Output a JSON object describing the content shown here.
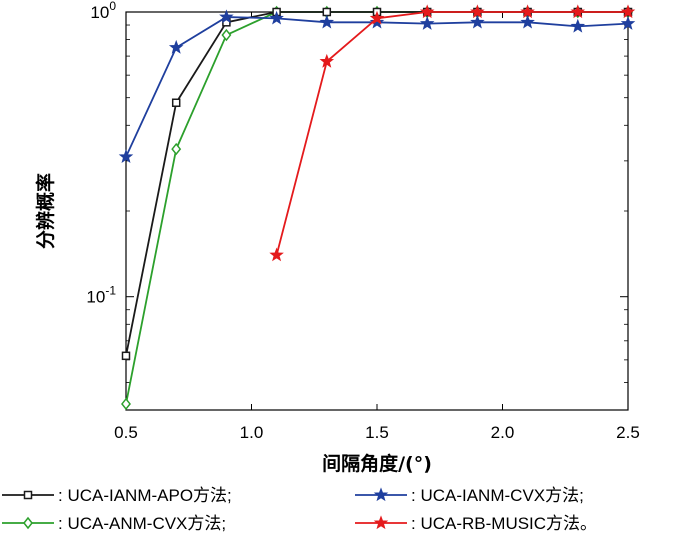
{
  "chart_data": {
    "type": "line",
    "title": "",
    "xlabel": "间隔角度/(°)",
    "ylabel": "分辨概率",
    "xlim": [
      0.5,
      2.5
    ],
    "ylim": [
      0.04,
      1.0
    ],
    "yscale": "log",
    "xticks": [
      "0.5",
      "1.0",
      "1.5",
      "2.0",
      "2.5"
    ],
    "yticks": [
      {
        "value": 0.1,
        "base": "10",
        "exp": "-1"
      },
      {
        "value": 1.0,
        "base": "10",
        "exp": "0"
      }
    ],
    "grid": false,
    "legend_position": "bottom",
    "series": [
      {
        "name": ": UCA-IANM-APO方法;",
        "color": "#1a1a1a",
        "marker": "square",
        "x": [
          0.5,
          0.7,
          0.9,
          1.1,
          1.3,
          1.5,
          1.7,
          1.9,
          2.1,
          2.3,
          2.5
        ],
        "y": [
          0.062,
          0.48,
          0.92,
          1.0,
          1.0,
          1.0,
          1.0,
          1.0,
          1.0,
          1.0,
          1.0
        ]
      },
      {
        "name": ": UCA-IANM-CVX方法;",
        "color": "#1f3f9e",
        "marker": "star",
        "x": [
          0.5,
          0.7,
          0.9,
          1.1,
          1.3,
          1.5,
          1.7,
          1.9,
          2.1,
          2.3,
          2.5
        ],
        "y": [
          0.31,
          0.75,
          0.96,
          0.95,
          0.92,
          0.92,
          0.91,
          0.92,
          0.92,
          0.89,
          0.91
        ]
      },
      {
        "name": ": UCA-ANM-CVX方法;",
        "color": "#2ca02c",
        "marker": "diamond",
        "x": [
          0.5,
          0.7,
          0.9,
          1.1,
          1.3,
          1.5,
          1.7,
          1.9,
          2.1,
          2.3,
          2.5
        ],
        "y": [
          0.042,
          0.33,
          0.83,
          1.0,
          1.0,
          1.0,
          1.0,
          1.0,
          1.0,
          1.0,
          1.0
        ]
      },
      {
        "name": ": UCA-RB-MUSIC方法。",
        "color": "#e41a1c",
        "marker": "star",
        "x": [
          1.1,
          1.3,
          1.5,
          1.7,
          1.9,
          2.1,
          2.3,
          2.5
        ],
        "y": [
          0.14,
          0.67,
          0.95,
          1.0,
          1.0,
          1.0,
          1.0,
          1.0
        ]
      }
    ]
  }
}
